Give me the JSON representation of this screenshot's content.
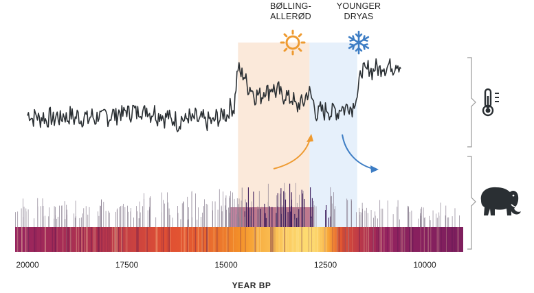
{
  "chart_data": {
    "type": "line",
    "xlabel": "YEAR BP",
    "x_reversed": true,
    "xlim": [
      20000,
      9800
    ],
    "x_ticks": [
      20000,
      17500,
      15000,
      12500,
      10000
    ],
    "x_tick_labels": [
      "20000",
      "17500",
      "15000",
      "12500",
      "10000"
    ],
    "periods": [
      {
        "label_lines": [
          "BØLLING-",
          "ALLERØD"
        ],
        "x_start": 14700,
        "x_end": 12900,
        "color": "#fbe9da",
        "icon": "sun-icon",
        "icon_color": "#ee9a30",
        "arrow": "up",
        "arrow_color": "#ee9a30"
      },
      {
        "label_lines": [
          "YOUNGER",
          "DRYAS"
        ],
        "x_start": 12900,
        "x_end": 11700,
        "color": "#e6f0fb",
        "icon": "snowflake-icon",
        "icon_color": "#3d7dc4",
        "arrow": "down",
        "arrow_color": "#3d7dc4"
      }
    ],
    "temperature_series": {
      "color": "#2a2f33",
      "description_units": "relative temperature (0 = cold, 1 = warm)",
      "x": [
        20000,
        19500,
        19000,
        18500,
        18000,
        17500,
        17000,
        16500,
        16200,
        16000,
        15700,
        15400,
        15000,
        14800,
        14700,
        14600,
        14400,
        14200,
        14000,
        13800,
        13600,
        13400,
        13200,
        13000,
        12900,
        12800,
        12700,
        12500,
        12300,
        12000,
        11800,
        11700,
        11600,
        11400,
        11200,
        11000,
        10800,
        10600
      ],
      "values": [
        0.38,
        0.34,
        0.37,
        0.35,
        0.37,
        0.42,
        0.44,
        0.36,
        0.3,
        0.35,
        0.33,
        0.3,
        0.4,
        0.5,
        0.93,
        0.88,
        0.7,
        0.6,
        0.68,
        0.7,
        0.62,
        0.6,
        0.48,
        0.58,
        0.68,
        0.5,
        0.4,
        0.45,
        0.42,
        0.48,
        0.5,
        0.62,
        0.9,
        0.92,
        0.94,
        0.96,
        0.98,
        1.0
      ]
    },
    "mammoth_records": {
      "description": "barcode of dated mammoth remains; density shown as heat strip",
      "density_x": [
        20000,
        19000,
        18000,
        17000,
        16500,
        16000,
        15500,
        15000,
        14500,
        14000,
        13500,
        13200,
        12900,
        12500,
        12000,
        11500,
        11000,
        10500,
        10000
      ],
      "density": [
        0.35,
        0.4,
        0.45,
        0.55,
        0.6,
        0.62,
        0.68,
        0.75,
        0.85,
        0.9,
        0.95,
        0.97,
        0.92,
        0.6,
        0.45,
        0.35,
        0.3,
        0.28,
        0.25
      ]
    },
    "side_icons": [
      "thermometer-icon",
      "mammoth-icon"
    ]
  }
}
